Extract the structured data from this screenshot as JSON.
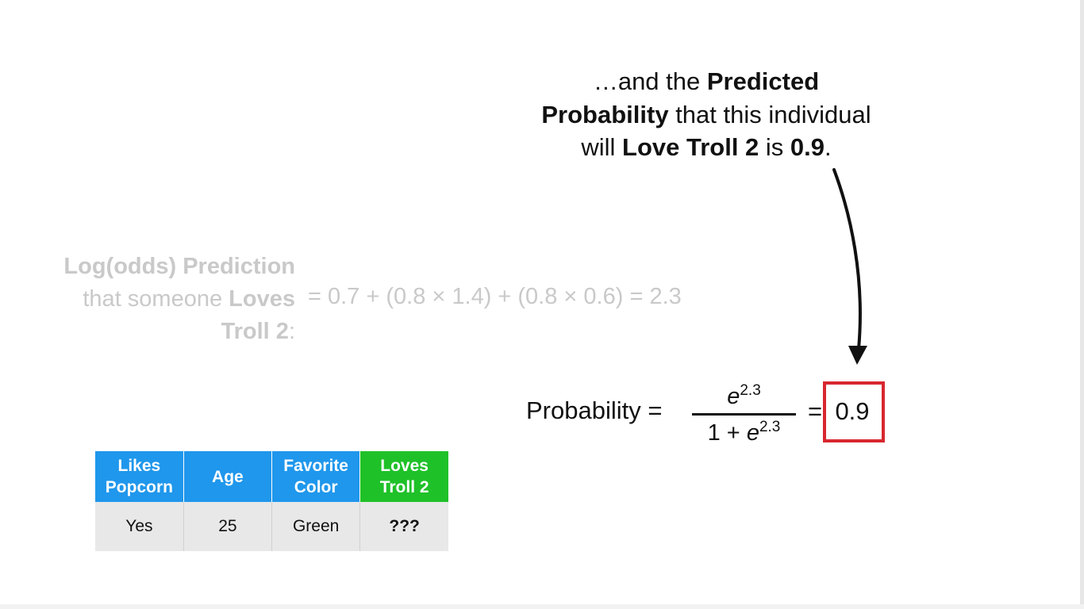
{
  "callout": {
    "line1_pre": "…and the ",
    "line1_bold": "Predicted",
    "line2_bold": "Probability",
    "line2_post": " that this individual",
    "line3_pre": "will ",
    "line3_bold": "Love Troll 2",
    "line3_mid": " is ",
    "line3_value": "0.9",
    "line3_end": "."
  },
  "logodds": {
    "line1": "Log(odds) Prediction",
    "line2_pre": "that someone ",
    "line2_bold": "Loves",
    "line3_bold": "Troll 2",
    "line3_post": ":",
    "equation": "= 0.7 + (0.8 × 1.4) + (0.8 × 0.6) = 2.3"
  },
  "formula": {
    "label": "Probability =",
    "num_base": "e",
    "num_exp": "2.3",
    "den_pre": "1 + ",
    "den_base": "e",
    "den_exp": "2.3",
    "equals": "=",
    "result": "0.9"
  },
  "table": {
    "headers": [
      {
        "line1": "Likes",
        "line2": "Popcorn"
      },
      {
        "line1": "Age",
        "line2": ""
      },
      {
        "line1": "Favorite",
        "line2": "Color"
      },
      {
        "line1": "Loves",
        "line2": "Troll 2"
      }
    ],
    "row": [
      "Yes",
      "25",
      "Green",
      "???"
    ]
  },
  "colors": {
    "header_blue": "#1f97ec",
    "header_green": "#1fc128",
    "highlight_red": "#d8272f",
    "faded_text": "#c9c9c9"
  }
}
